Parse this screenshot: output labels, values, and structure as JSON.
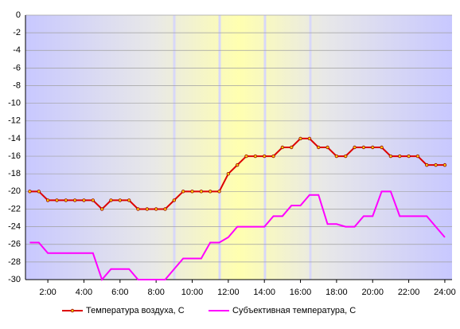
{
  "chart_data": {
    "type": "line",
    "x": [
      1,
      1.5,
      2,
      2.5,
      3,
      3.5,
      4,
      4.5,
      5,
      5.5,
      6,
      6.5,
      7,
      7.5,
      8,
      8.5,
      9,
      9.5,
      10,
      10.5,
      11,
      11.5,
      12,
      12.5,
      13,
      13.5,
      14,
      14.5,
      15,
      15.5,
      16,
      16.5,
      17,
      17.5,
      18,
      18.5,
      19,
      19.5,
      20,
      20.5,
      21,
      21.5,
      22,
      22.5,
      23,
      23.5,
      24
    ],
    "series": [
      {
        "name": "Температура воздуха, C",
        "color": "#dd0000",
        "markers": true,
        "values": [
          -20,
          -20,
          -21,
          -21,
          -21,
          -21,
          -21,
          -21,
          -22,
          -21,
          -21,
          -21,
          -22,
          -22,
          -22,
          -22,
          -21,
          -20,
          -20,
          -20,
          -20,
          -20,
          -18,
          -17,
          -16,
          -16,
          -16,
          -16,
          -15,
          -15,
          -14,
          -14,
          -15,
          -15,
          -16,
          -16,
          -15,
          -15,
          -15,
          -15,
          -16,
          -16,
          -16,
          -16,
          -17,
          -17,
          -17
        ]
      },
      {
        "name": "Субъективная температура, C",
        "color": "#ff00ff",
        "markers": false,
        "values": [
          -25.8,
          -25.8,
          -27,
          -27,
          -27,
          -27,
          -27,
          -27,
          -30,
          -28.8,
          -28.8,
          -28.8,
          -30,
          -30,
          -30,
          -30,
          -28.8,
          -27.6,
          -27.6,
          -27.6,
          -25.8,
          -25.8,
          -25.2,
          -24,
          -24,
          -24,
          -24,
          -22.8,
          -22.8,
          -21.6,
          -21.6,
          -20.4,
          -20.4,
          -23.7,
          -23.7,
          -24,
          -24,
          -22.8,
          -22.8,
          -20,
          -20,
          -22.8,
          -22.8,
          -22.8,
          -22.8,
          -24,
          -25.2
        ]
      }
    ],
    "xlim": [
      0.76,
      24.4
    ],
    "xticks": [
      {
        "value": 2,
        "label": "2:00"
      },
      {
        "value": 4,
        "label": "4:00"
      },
      {
        "value": 6,
        "label": "6:00"
      },
      {
        "value": 8,
        "label": "8:00"
      },
      {
        "value": 10,
        "label": "10:00"
      },
      {
        "value": 12,
        "label": "12:00"
      },
      {
        "value": 14,
        "label": "14:00"
      },
      {
        "value": 16,
        "label": "16:00"
      },
      {
        "value": 18,
        "label": "18:00"
      },
      {
        "value": 20,
        "label": "20:00"
      },
      {
        "value": 22,
        "label": "22:00"
      },
      {
        "value": 24,
        "label": "24:00"
      }
    ],
    "ylim": [
      -30,
      0
    ],
    "yticks": [
      0,
      -2,
      -4,
      -6,
      -8,
      -10,
      -12,
      -14,
      -16,
      -18,
      -20,
      -22,
      -24,
      -26,
      -28,
      -30
    ],
    "grid": true
  }
}
